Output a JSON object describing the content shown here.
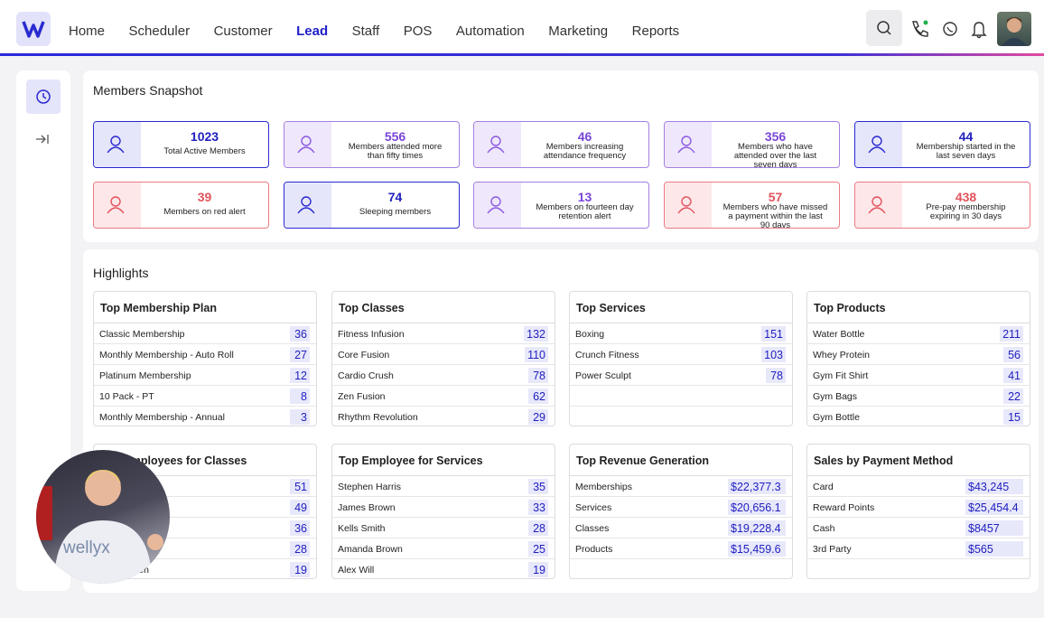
{
  "nav": {
    "items": [
      "Home",
      "Scheduler",
      "Customer",
      "Lead",
      "Staff",
      "POS",
      "Automation",
      "Marketing",
      "Reports"
    ],
    "active": 3
  },
  "snapshot": {
    "title": "Members Snapshot",
    "cards": [
      {
        "value": 1023,
        "label": "Total Active Members",
        "tone": "blue"
      },
      {
        "value": 556,
        "label": "Members attended more than fifty times",
        "tone": "purple"
      },
      {
        "value": 46,
        "label": "Members increasing attendance frequency",
        "tone": "purple"
      },
      {
        "value": 356,
        "label": "Members who have attended over the last seven days",
        "tone": "purple"
      },
      {
        "value": 44,
        "label": "Membership started in the last seven days",
        "tone": "blue"
      },
      {
        "value": 39,
        "label": "Members on red alert",
        "tone": "red"
      },
      {
        "value": 74,
        "label": "Sleeping members",
        "tone": "blue"
      },
      {
        "value": 13,
        "label": "Members on fourteen day retention alert",
        "tone": "purple"
      },
      {
        "value": 57,
        "label": "Members who have missed a payment within the last 90 days",
        "tone": "red"
      },
      {
        "value": 438,
        "label": "Pre-pay membership expiring in 30 days",
        "tone": "red"
      }
    ]
  },
  "highlights": {
    "title": "Highlights",
    "panels": [
      {
        "title": "Top Membership Plan",
        "rows": [
          [
            "Classic Membership",
            36
          ],
          [
            "Monthly Membership - Auto Roll",
            27
          ],
          [
            "Platinum Membership",
            12
          ],
          [
            "10 Pack - PT",
            8
          ],
          [
            "Monthly Membership - Annual",
            3
          ]
        ]
      },
      {
        "title": "Top Classes",
        "rows": [
          [
            "Fitness Infusion",
            132
          ],
          [
            "Core Fusion",
            110
          ],
          [
            "Cardio Crush",
            78
          ],
          [
            "Zen Fusion",
            62
          ],
          [
            "Rhythm Revolution",
            29
          ]
        ]
      },
      {
        "title": "Top Services",
        "rows": [
          [
            "Boxing",
            151
          ],
          [
            "Crunch Fitness",
            103
          ],
          [
            "Power Sculpt",
            78
          ]
        ]
      },
      {
        "title": "Top Products",
        "rows": [
          [
            "Water Bottle",
            211
          ],
          [
            "Whey Protein",
            56
          ],
          [
            "Gym Fit Shirt",
            41
          ],
          [
            "Gym Bags",
            22
          ],
          [
            "Gym Bottle",
            15
          ]
        ]
      },
      {
        "title": "Top Employees for Classes",
        "rows": [
          [
            null,
            51
          ],
          [
            null,
            49
          ],
          [
            null,
            36
          ],
          [
            null,
            28
          ],
          [
            "reen",
            19
          ]
        ]
      },
      {
        "title": "Top Employee for Services",
        "rows": [
          [
            "Stephen Harris",
            35
          ],
          [
            "James Brown",
            33
          ],
          [
            "Kells Smith",
            28
          ],
          [
            "Amanda Brown",
            25
          ],
          [
            "Alex Will",
            19
          ]
        ]
      },
      {
        "title": "Top Revenue Generation",
        "rows": [
          [
            "Memberships",
            "$22,377.3"
          ],
          [
            "Services",
            "$20,656.1"
          ],
          [
            "Classes",
            "$19,228.4"
          ],
          [
            "Products",
            "$15,459.6"
          ]
        ]
      },
      {
        "title": "Sales by Payment Method",
        "rows": [
          [
            "Card",
            "$43,245"
          ],
          [
            "Reward Points",
            "$25,454.4"
          ],
          [
            "Cash",
            "$8457"
          ],
          [
            "3rd Party",
            "$565"
          ]
        ]
      }
    ]
  },
  "video_overlay": {
    "shirt_text": "wellyx"
  }
}
